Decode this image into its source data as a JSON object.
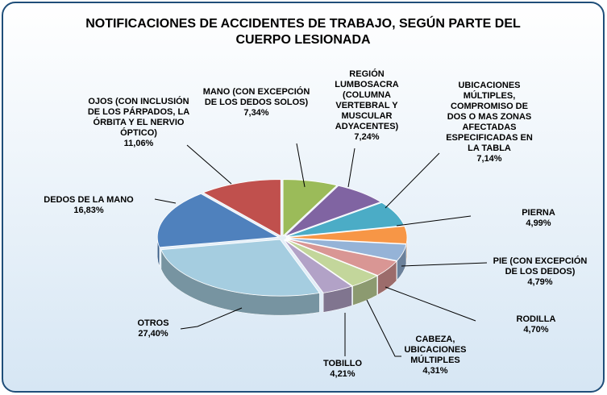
{
  "chart_data": {
    "type": "pie3d",
    "title": "NOTIFICACIONES DE ACCIDENTES DE TRABAJO, SEGÚN PARTE DEL CUERPO LESIONADA",
    "categories": [
      "MANO (CON EXCEPCIÓN DE LOS DEDOS SOLOS)",
      "REGIÓN LUMBOSACRA (COLUMNA VERTEBRAL Y MUSCULAR ADYACENTES)",
      "UBICACIONES MÚLTIPLES, COMPROMISO DE DOS O MAS ZONAS AFECTADAS ESPECIFICADAS EN LA TABLA",
      "PIERNA",
      "PIE (CON EXCEPCIÓN DE LOS DEDOS)",
      "RODILLA",
      "CABEZA, UBICACIONES MÚLTIPLES",
      "TOBILLO",
      "OTROS",
      "DEDOS DE LA MANO",
      "OJOS (CON INCLUSIÓN DE LOS PÁRPADOS, LA ÓRBITA Y EL NERVIO ÓPTICO)"
    ],
    "values": [
      7.34,
      7.24,
      7.14,
      4.99,
      4.79,
      4.7,
      4.31,
      4.21,
      27.4,
      16.83,
      11.06
    ],
    "value_labels": [
      "7,34%",
      "7,24%",
      "7,14%",
      "4,99%",
      "4,79%",
      "4,70%",
      "4,31%",
      "4,21%",
      "27,40%",
      "16,83%",
      "11,06%"
    ],
    "colors": [
      "#9bbb59",
      "#8064a2",
      "#4bacc6",
      "#f79646",
      "#95b3d7",
      "#d99694",
      "#c3d69b",
      "#b2a2c7",
      "#a5cde0",
      "#4f81bd",
      "#c0504d"
    ]
  }
}
